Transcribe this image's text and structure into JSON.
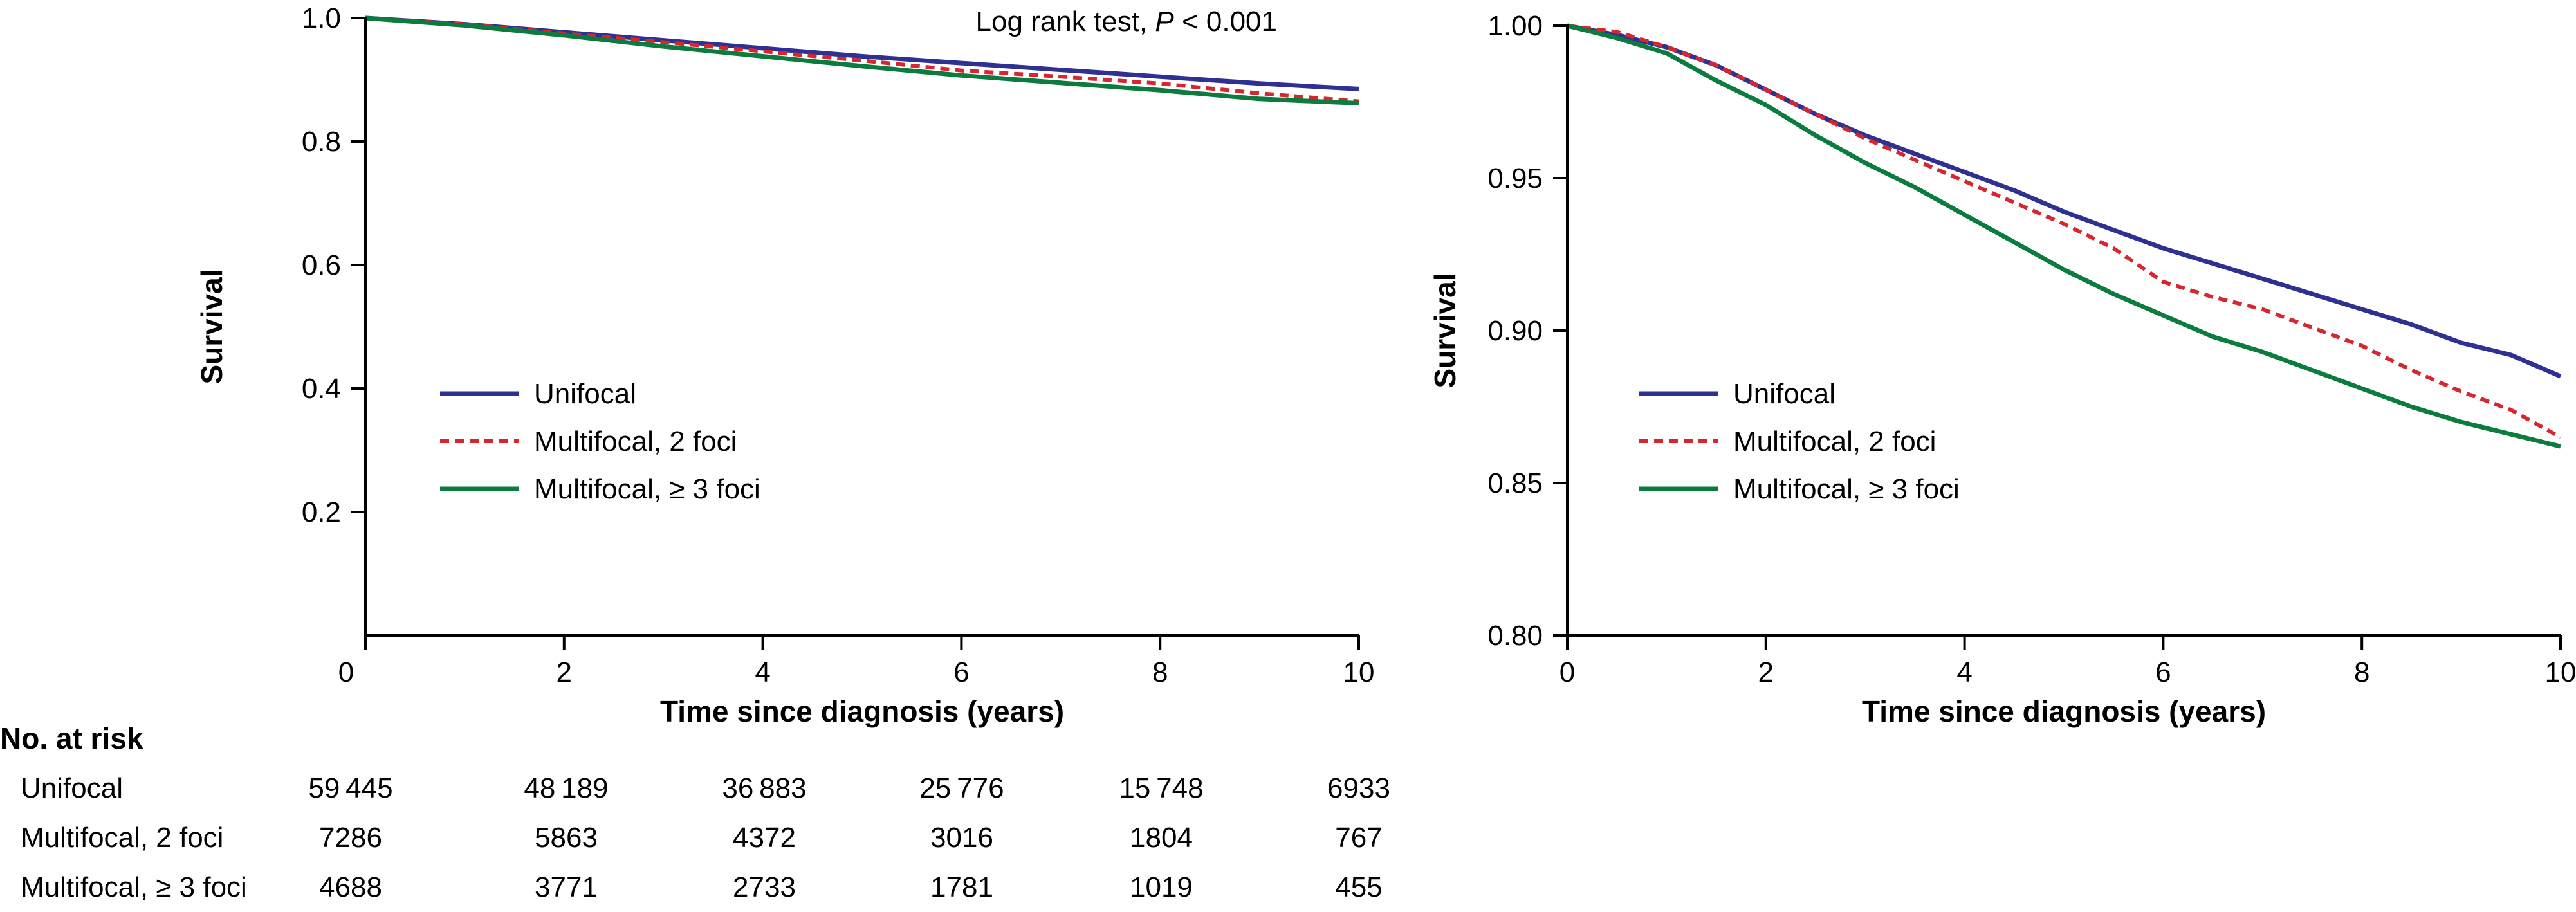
{
  "chart_data": [
    {
      "type": "line",
      "panel": "left",
      "annotation": "Log rank test, ",
      "annotation_p": "P",
      "annotation_rest": " < 0.001",
      "xlabel": "Time since diagnosis (years)",
      "ylabel": "Survival",
      "xlim": [
        0,
        10
      ],
      "ylim": [
        0,
        1.0
      ],
      "xticks": [
        0,
        2,
        4,
        6,
        8,
        10
      ],
      "xtick_labels": [
        "0",
        "2",
        "4",
        "6",
        "8",
        "10"
      ],
      "yticks": [
        0.2,
        0.4,
        0.6,
        0.8,
        1.0
      ],
      "ytick_labels": [
        "0.2",
        "0.4",
        "0.6",
        "0.8",
        "1.0"
      ],
      "legend_position": "center-left",
      "series": [
        {
          "name": "Unifocal",
          "color": "#2e3192",
          "style": "solid",
          "x": [
            0,
            1,
            2,
            3,
            4,
            5,
            6,
            7,
            8,
            9,
            10
          ],
          "y": [
            1.0,
            0.99,
            0.977,
            0.964,
            0.951,
            0.938,
            0.927,
            0.916,
            0.905,
            0.894,
            0.885
          ]
        },
        {
          "name": "Multifocal, 2 foci",
          "color": "#d7262f",
          "style": "dashed",
          "x": [
            0,
            1,
            2,
            3,
            4,
            5,
            6,
            7,
            8,
            9,
            10
          ],
          "y": [
            1.0,
            0.99,
            0.975,
            0.961,
            0.946,
            0.931,
            0.915,
            0.905,
            0.894,
            0.878,
            0.865
          ]
        },
        {
          "name": "Multifocal, ≥ 3 foci",
          "color": "#0b7b3e",
          "style": "solid",
          "x": [
            0,
            1,
            2,
            3,
            4,
            5,
            6,
            7,
            8,
            9,
            10
          ],
          "y": [
            1.0,
            0.988,
            0.972,
            0.954,
            0.938,
            0.922,
            0.907,
            0.895,
            0.883,
            0.869,
            0.862
          ]
        }
      ]
    },
    {
      "type": "line",
      "panel": "right",
      "xlabel": "Time since diagnosis (years)",
      "ylabel": "Survival",
      "xlim": [
        0,
        10
      ],
      "ylim": [
        0.8,
        1.0
      ],
      "xticks": [
        0,
        2,
        4,
        6,
        8,
        10
      ],
      "xtick_labels": [
        "0",
        "2",
        "4",
        "6",
        "8",
        "10"
      ],
      "yticks": [
        0.8,
        0.85,
        0.9,
        0.95,
        1.0
      ],
      "ytick_labels": [
        "0.80",
        "0.85",
        "0.90",
        "0.95",
        "1.00"
      ],
      "legend_position": "center-left",
      "series": [
        {
          "name": "Unifocal",
          "color": "#2e3192",
          "style": "solid",
          "x": [
            0,
            0.5,
            1,
            1.5,
            2,
            2.5,
            3,
            3.5,
            4,
            4.5,
            5,
            5.5,
            6,
            6.5,
            7,
            7.5,
            8,
            8.5,
            9,
            9.5,
            10
          ],
          "y": [
            1.0,
            0.997,
            0.993,
            0.987,
            0.979,
            0.971,
            0.964,
            0.958,
            0.952,
            0.946,
            0.939,
            0.933,
            0.927,
            0.922,
            0.917,
            0.912,
            0.907,
            0.902,
            0.896,
            0.892,
            0.885
          ]
        },
        {
          "name": "Multifocal, 2 foci",
          "color": "#d7262f",
          "style": "dashed",
          "x": [
            0,
            0.5,
            1,
            1.5,
            2,
            2.5,
            3,
            3.5,
            4,
            4.5,
            5,
            5.5,
            6,
            6.5,
            7,
            7.5,
            8,
            8.5,
            9,
            9.5,
            10
          ],
          "y": [
            1.0,
            0.998,
            0.993,
            0.987,
            0.979,
            0.971,
            0.963,
            0.956,
            0.949,
            0.942,
            0.935,
            0.927,
            0.916,
            0.911,
            0.907,
            0.901,
            0.895,
            0.887,
            0.88,
            0.874,
            0.865
          ]
        },
        {
          "name": "Multifocal, ≥ 3 foci",
          "color": "#0b7b3e",
          "style": "solid",
          "x": [
            0,
            0.5,
            1,
            1.5,
            2,
            2.5,
            3,
            3.5,
            4,
            4.5,
            5,
            5.5,
            6,
            6.5,
            7,
            7.5,
            8,
            8.5,
            9,
            9.5,
            10
          ],
          "y": [
            1.0,
            0.996,
            0.991,
            0.982,
            0.974,
            0.964,
            0.955,
            0.947,
            0.938,
            0.929,
            0.92,
            0.912,
            0.905,
            0.898,
            0.893,
            0.887,
            0.881,
            0.875,
            0.87,
            0.866,
            0.862
          ]
        }
      ]
    }
  ],
  "risk_table": {
    "title": "No. at risk",
    "rows": [
      {
        "label": "Unifocal",
        "values": [
          "59 445",
          "48 189",
          "36 883",
          "25 776",
          "15 748",
          "6933"
        ]
      },
      {
        "label": "Multifocal, 2 foci",
        "values": [
          "7286",
          "5863",
          "4372",
          "3016",
          "1804",
          "767"
        ]
      },
      {
        "label": "Multifocal, ≥ 3 foci",
        "values": [
          "4688",
          "3771",
          "2733",
          "1781",
          "1019",
          "455"
        ]
      }
    ]
  }
}
